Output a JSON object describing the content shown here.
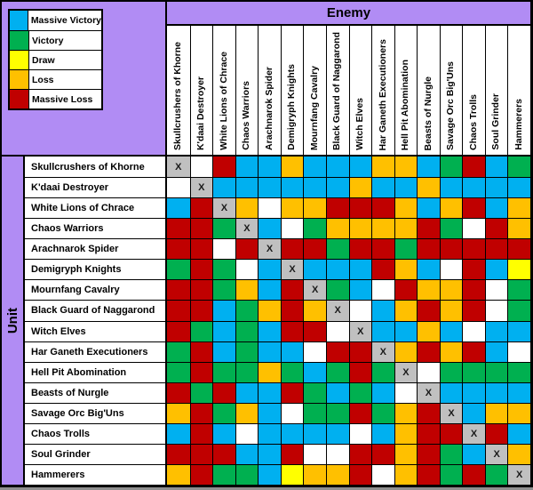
{
  "palette": {
    "header_purple": "#B18CF4",
    "grid_black": "#000000",
    "code_colors": {
      "MV": "#00B0F0",
      "V": "#00B050",
      "D": "#FFFF00",
      "L": "#FFC000",
      "ML": "#C00000",
      "X": "#C0C0C0",
      "-": "#FFFFFF"
    }
  },
  "chart_data": {
    "type": "heatmap",
    "x_axis_label": "Enemy",
    "y_axis_label": "Unit",
    "diagonal_mark": "X",
    "legend_position": "top-left",
    "legend": [
      {
        "label": "Massive Victory",
        "code": "MV",
        "color": "#00B0F0"
      },
      {
        "label": "Victory",
        "code": "V",
        "color": "#00B050"
      },
      {
        "label": "Draw",
        "code": "D",
        "color": "#FFFF00"
      },
      {
        "label": "Loss",
        "code": "L",
        "color": "#FFC000"
      },
      {
        "label": "Massive Loss",
        "code": "ML",
        "color": "#C00000"
      }
    ],
    "code_meanings": {
      "MV": "Massive Victory",
      "V": "Victory",
      "D": "Draw",
      "L": "Loss",
      "ML": "Massive Loss",
      "X": "Same unit (diagonal)",
      "-": "Blank / no result"
    },
    "categories": [
      "Skullcrushers of Khorne",
      "K'daai Destroyer",
      "White Lions of Chrace",
      "Chaos Warriors",
      "Arachnarok Spider",
      "Demigryph Knights",
      "Mournfang Cavalry",
      "Black Guard of Naggarond",
      "Witch Elves",
      "Har Ganeth Executioners",
      "Hell Pit Abomination",
      "Beasts of Nurgle",
      "Savage Orc Big'Uns",
      "Chaos Trolls",
      "Soul Grinder",
      "Hammerers"
    ],
    "matrix_codes": [
      [
        "X",
        "-",
        "ML",
        "MV",
        "MV",
        "L",
        "MV",
        "MV",
        "MV",
        "L",
        "L",
        "MV",
        "V",
        "ML",
        "MV",
        "V"
      ],
      [
        "-",
        "X",
        "MV",
        "MV",
        "MV",
        "MV",
        "MV",
        "MV",
        "L",
        "MV",
        "MV",
        "L",
        "MV",
        "MV",
        "MV",
        "MV"
      ],
      [
        "MV",
        "ML",
        "X",
        "L",
        "-",
        "L",
        "L",
        "ML",
        "ML",
        "ML",
        "L",
        "MV",
        "L",
        "ML",
        "MV",
        "L"
      ],
      [
        "ML",
        "ML",
        "V",
        "X",
        "MV",
        "-",
        "V",
        "L",
        "L",
        "L",
        "L",
        "ML",
        "V",
        "-",
        "ML",
        "L"
      ],
      [
        "ML",
        "ML",
        "-",
        "ML",
        "X",
        "ML",
        "ML",
        "V",
        "ML",
        "ML",
        "V",
        "ML",
        "ML",
        "ML",
        "ML",
        "ML"
      ],
      [
        "V",
        "ML",
        "V",
        "-",
        "MV",
        "X",
        "MV",
        "MV",
        "MV",
        "ML",
        "L",
        "MV",
        "-",
        "ML",
        "MV",
        "D"
      ],
      [
        "ML",
        "ML",
        "V",
        "L",
        "MV",
        "ML",
        "X",
        "V",
        "MV",
        "-",
        "ML",
        "L",
        "L",
        "ML",
        "-",
        "V"
      ],
      [
        "ML",
        "ML",
        "MV",
        "V",
        "L",
        "ML",
        "L",
        "X",
        "-",
        "MV",
        "L",
        "ML",
        "L",
        "ML",
        "-",
        "V"
      ],
      [
        "ML",
        "V",
        "MV",
        "V",
        "MV",
        "ML",
        "ML",
        "-",
        "X",
        "MV",
        "MV",
        "L",
        "MV",
        "-",
        "MV",
        "MV"
      ],
      [
        "V",
        "ML",
        "MV",
        "V",
        "MV",
        "MV",
        "-",
        "ML",
        "ML",
        "X",
        "L",
        "ML",
        "L",
        "ML",
        "MV",
        "-"
      ],
      [
        "V",
        "ML",
        "V",
        "V",
        "L",
        "V",
        "MV",
        "V",
        "ML",
        "V",
        "X",
        "-",
        "V",
        "V",
        "V",
        "V"
      ],
      [
        "ML",
        "V",
        "ML",
        "MV",
        "MV",
        "ML",
        "V",
        "MV",
        "V",
        "MV",
        "-",
        "X",
        "MV",
        "MV",
        "MV",
        "MV"
      ],
      [
        "L",
        "ML",
        "V",
        "L",
        "MV",
        "-",
        "V",
        "V",
        "ML",
        "V",
        "L",
        "ML",
        "X",
        "MV",
        "L",
        "L"
      ],
      [
        "MV",
        "ML",
        "MV",
        "-",
        "MV",
        "MV",
        "MV",
        "MV",
        "-",
        "MV",
        "L",
        "ML",
        "ML",
        "X",
        "ML",
        "MV"
      ],
      [
        "ML",
        "ML",
        "ML",
        "MV",
        "MV",
        "ML",
        "-",
        "-",
        "ML",
        "ML",
        "L",
        "ML",
        "V",
        "MV",
        "X",
        "L"
      ],
      [
        "L",
        "ML",
        "V",
        "V",
        "MV",
        "D",
        "L",
        "L",
        "ML",
        "-",
        "L",
        "ML",
        "V",
        "ML",
        "V",
        "X"
      ]
    ]
  }
}
